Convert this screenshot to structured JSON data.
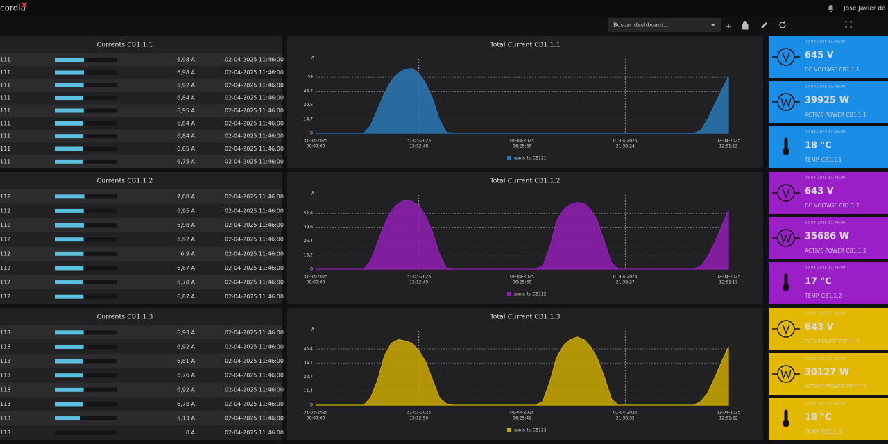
{
  "header": {
    "logo": "cordia",
    "user": "José Javier de la",
    "search_placeholder": "Buscar dashboard..."
  },
  "sections": [
    {
      "color": "#1a8de6",
      "card_text_color": "#ffffff",
      "table": {
        "title": "Currents CB1.1.1",
        "bar_max": 15,
        "rows": [
          {
            "name": "111",
            "value": 6.98,
            "value_label": "6,98 A",
            "time": "02-04-2025 11:46:00"
          },
          {
            "name": "111",
            "value": 6.98,
            "value_label": "6,98 A",
            "time": "02-04-2025 11:46:00"
          },
          {
            "name": "111",
            "value": 6.92,
            "value_label": "6,92 A",
            "time": "02-04-2025 11:46:00"
          },
          {
            "name": "111",
            "value": 6.84,
            "value_label": "6,84 A",
            "time": "02-04-2025 11:46:00"
          },
          {
            "name": "111",
            "value": 6.95,
            "value_label": "6,95 A",
            "time": "02-04-2025 11:46:00"
          },
          {
            "name": "111",
            "value": 6.84,
            "value_label": "6,84 A",
            "time": "02-04-2025 11:46:00"
          },
          {
            "name": "111",
            "value": 6.84,
            "value_label": "6,84 A",
            "time": "02-04-2025 11:46:00"
          },
          {
            "name": "111",
            "value": 6.65,
            "value_label": "6,65 A",
            "time": "02-04-2025 11:46:00"
          },
          {
            "name": "111",
            "value": 6.75,
            "value_label": "6,75 A",
            "time": "02-04-2025 11:46:00"
          }
        ]
      },
      "chart": {
        "type": "area",
        "title": "Total Current CB1.1.1",
        "y_unit": "A",
        "ylim": [
          0,
          78
        ],
        "yticks": [
          0,
          {
            "value": 14.7,
            "label": "14,7"
          },
          {
            "value": 29.5,
            "label": "29,5"
          },
          {
            "value": 44.2,
            "label": "44,2"
          },
          59
        ],
        "xticks": [
          {
            "date": "31-03-2025",
            "time": "00:00:00"
          },
          {
            "date": "31-03-2025",
            "time": "15:12:48"
          },
          {
            "date": "01-04-2025",
            "time": "06:25:36"
          },
          {
            "date": "01-04-2025",
            "time": "21:38:24"
          },
          {
            "date": "02-04-2025",
            "time": "12:51:13"
          }
        ],
        "grid": true,
        "series": [
          {
            "name": "sums_Is_CB111",
            "color": "#2a78b4",
            "values": [
              0,
              0,
              0,
              0,
              0,
              0,
              0,
              0,
              8,
              25,
              42,
              55,
              63,
              67,
              68,
              63,
              52,
              36,
              14,
              1,
              0,
              0,
              0,
              0,
              0,
              0,
              0,
              0,
              0,
              0,
              0,
              0,
              0,
              0,
              0,
              0,
              0,
              0,
              0,
              0,
              0,
              0,
              0,
              0,
              0,
              0,
              0,
              0,
              0,
              0,
              0,
              0,
              0,
              0,
              0,
              0,
              3,
              15,
              30,
              45,
              59
            ]
          }
        ]
      },
      "cards": [
        {
          "time": "02-04-2025 11:46:00",
          "value": "645 V",
          "label": "DC VOLTAGE CB1.1.1"
        },
        {
          "time": "02-04-2025 11:46:00",
          "value": "39925 W",
          "label": "ACTIVE POWER CB1.1.1"
        },
        {
          "time": "02-04-2025 11:46:00",
          "value": "18 °C",
          "label": "TEMP. CB1.1.1"
        }
      ]
    },
    {
      "color": "#9b1fc6",
      "card_text_color": "#ffffff",
      "table": {
        "title": "Currents CB1.1.2",
        "bar_max": 15,
        "rows": [
          {
            "name": "112",
            "value": 7.08,
            "value_label": "7,08 A",
            "time": "02-04-2025 11:46:00"
          },
          {
            "name": "112",
            "value": 6.95,
            "value_label": "6,95 A",
            "time": "02-04-2025 11:46:00"
          },
          {
            "name": "112",
            "value": 6.98,
            "value_label": "6,98 A",
            "time": "02-04-2025 11:46:00"
          },
          {
            "name": "112",
            "value": 6.92,
            "value_label": "6,92 A",
            "time": "02-04-2025 11:46:00"
          },
          {
            "name": "112",
            "value": 6.9,
            "value_label": "6,9 A",
            "time": "02-04-2025 11:46:00"
          },
          {
            "name": "112",
            "value": 6.87,
            "value_label": "6,87 A",
            "time": "02-04-2025 11:46:00"
          },
          {
            "name": "112",
            "value": 6.78,
            "value_label": "6,78 A",
            "time": "02-04-2025 11:46:00"
          },
          {
            "name": "112",
            "value": 6.87,
            "value_label": "6,87 A",
            "time": "02-04-2025 11:46:00"
          }
        ]
      },
      "chart": {
        "type": "area",
        "title": "Total Current CB1.1.2",
        "y_unit": "A",
        "ylim": [
          0,
          70
        ],
        "yticks": [
          0,
          {
            "value": 13.2,
            "label": "13,2"
          },
          {
            "value": 26.4,
            "label": "26,4"
          },
          {
            "value": 39.6,
            "label": "39,6"
          },
          {
            "value": 52.8,
            "label": "52,8"
          }
        ],
        "xticks": [
          {
            "date": "31-03-2025",
            "time": "00:00:00"
          },
          {
            "date": "31-03-2025",
            "time": "15:12:49"
          },
          {
            "date": "01-04-2025",
            "time": "06:25:38"
          },
          {
            "date": "01-04-2025",
            "time": "21:38:27"
          },
          {
            "date": "02-04-2025",
            "time": "12:51:17"
          }
        ],
        "grid": true,
        "series": [
          {
            "name": "sums_Is_CB112",
            "color": "#8f1fb4",
            "values": [
              0,
              0,
              0,
              0,
              0,
              0,
              0,
              0,
              8,
              25,
              42,
              55,
              62,
              65,
              64,
              60,
              50,
              35,
              14,
              1,
              0,
              0,
              0,
              0,
              0,
              0,
              0,
              0,
              0,
              0,
              0,
              0,
              0,
              3,
              20,
              45,
              56,
              61,
              63,
              62,
              56,
              45,
              25,
              6,
              0,
              0,
              0,
              0,
              0,
              0,
              0,
              0,
              0,
              0,
              0,
              0,
              3,
              12,
              25,
              40,
              56
            ]
          }
        ]
      },
      "cards": [
        {
          "time": "02-04-2025 11:46:00",
          "value": "643 V",
          "label": "DC VOLTAGE CB1.1.2"
        },
        {
          "time": "02-04-2025 11:46:00",
          "value": "35686 W",
          "label": "ACTIVE POWER CB1.1.2"
        },
        {
          "time": "02-04-2025 11:46:00",
          "value": "17 °C",
          "label": "TEMP. CB1.1.2"
        }
      ]
    },
    {
      "color": "#e2b900",
      "card_text_color": "#1a1a1a",
      "table": {
        "title": "Currents CB1.1.3",
        "bar_max": 15,
        "rows": [
          {
            "name": "113",
            "value": 6.93,
            "value_label": "6,93 A",
            "time": "02-04-2025 11:46:00"
          },
          {
            "name": "113",
            "value": 6.92,
            "value_label": "6,92 A",
            "time": "02-04-2025 11:46:00"
          },
          {
            "name": "113",
            "value": 6.81,
            "value_label": "6,81 A",
            "time": "02-04-2025 11:46:00"
          },
          {
            "name": "113",
            "value": 6.76,
            "value_label": "6,76 A",
            "time": "02-04-2025 11:46:00"
          },
          {
            "name": "113",
            "value": 6.92,
            "value_label": "6,92 A",
            "time": "02-04-2025 11:46:00"
          },
          {
            "name": "113",
            "value": 6.78,
            "value_label": "6,78 A",
            "time": "02-04-2025 11:46:00"
          },
          {
            "name": "113",
            "value": 6.13,
            "value_label": "6,13 A",
            "time": "02-04-2025 11:46:00"
          },
          {
            "name": "113",
            "value": 0,
            "value_label": "0 A",
            "time": "02-04-2025 11:46:00"
          }
        ]
      },
      "chart": {
        "type": "area",
        "title": "Total Current CB1.1.3",
        "y_unit": "A",
        "ylim": [
          0,
          60
        ],
        "yticks": [
          0,
          {
            "value": 11.4,
            "label": "11,4"
          },
          {
            "value": 22.7,
            "label": "22,7"
          },
          {
            "value": 34.1,
            "label": "34,1"
          },
          {
            "value": 45.4,
            "label": "45,4"
          }
        ],
        "xticks": [
          {
            "date": "31-03-2025",
            "time": "00:00:00"
          },
          {
            "date": "31-03-2025",
            "time": "15:12:50"
          },
          {
            "date": "01-04-2025",
            "time": "06:25:41"
          },
          {
            "date": "01-04-2025",
            "time": "21:38:32"
          },
          {
            "date": "02-04-2025",
            "time": "12:51:22"
          }
        ],
        "grid": true,
        "series": [
          {
            "name": "sums_Is_CB113",
            "color": "#c9a800",
            "values": [
              0,
              0,
              0,
              0,
              0,
              0,
              0,
              0,
              6,
              20,
              40,
              50,
              53,
              52,
              50,
              44,
              35,
              20,
              6,
              1,
              0,
              0,
              0,
              0,
              0,
              0,
              0,
              0,
              0,
              0,
              0,
              0,
              0,
              3,
              18,
              38,
              48,
              53,
              55,
              53,
              47,
              37,
              22,
              5,
              0,
              0,
              0,
              0,
              0,
              0,
              0,
              0,
              0,
              0,
              0,
              0,
              3,
              10,
              22,
              35,
              47
            ]
          }
        ]
      },
      "cards": [
        {
          "time": "02-04-2025 11:46:00",
          "value": "643 V",
          "label": "DC VOLTAGE CB1.1.3"
        },
        {
          "time": "02-04-2025 11:46:00",
          "value": "30127 W",
          "label": "ACTIVE POWER CB1.1.3"
        },
        {
          "time": "02-04-2025 11:46:00",
          "value": "18 °C",
          "label": "TEMP. CB1.1.3"
        }
      ]
    }
  ]
}
